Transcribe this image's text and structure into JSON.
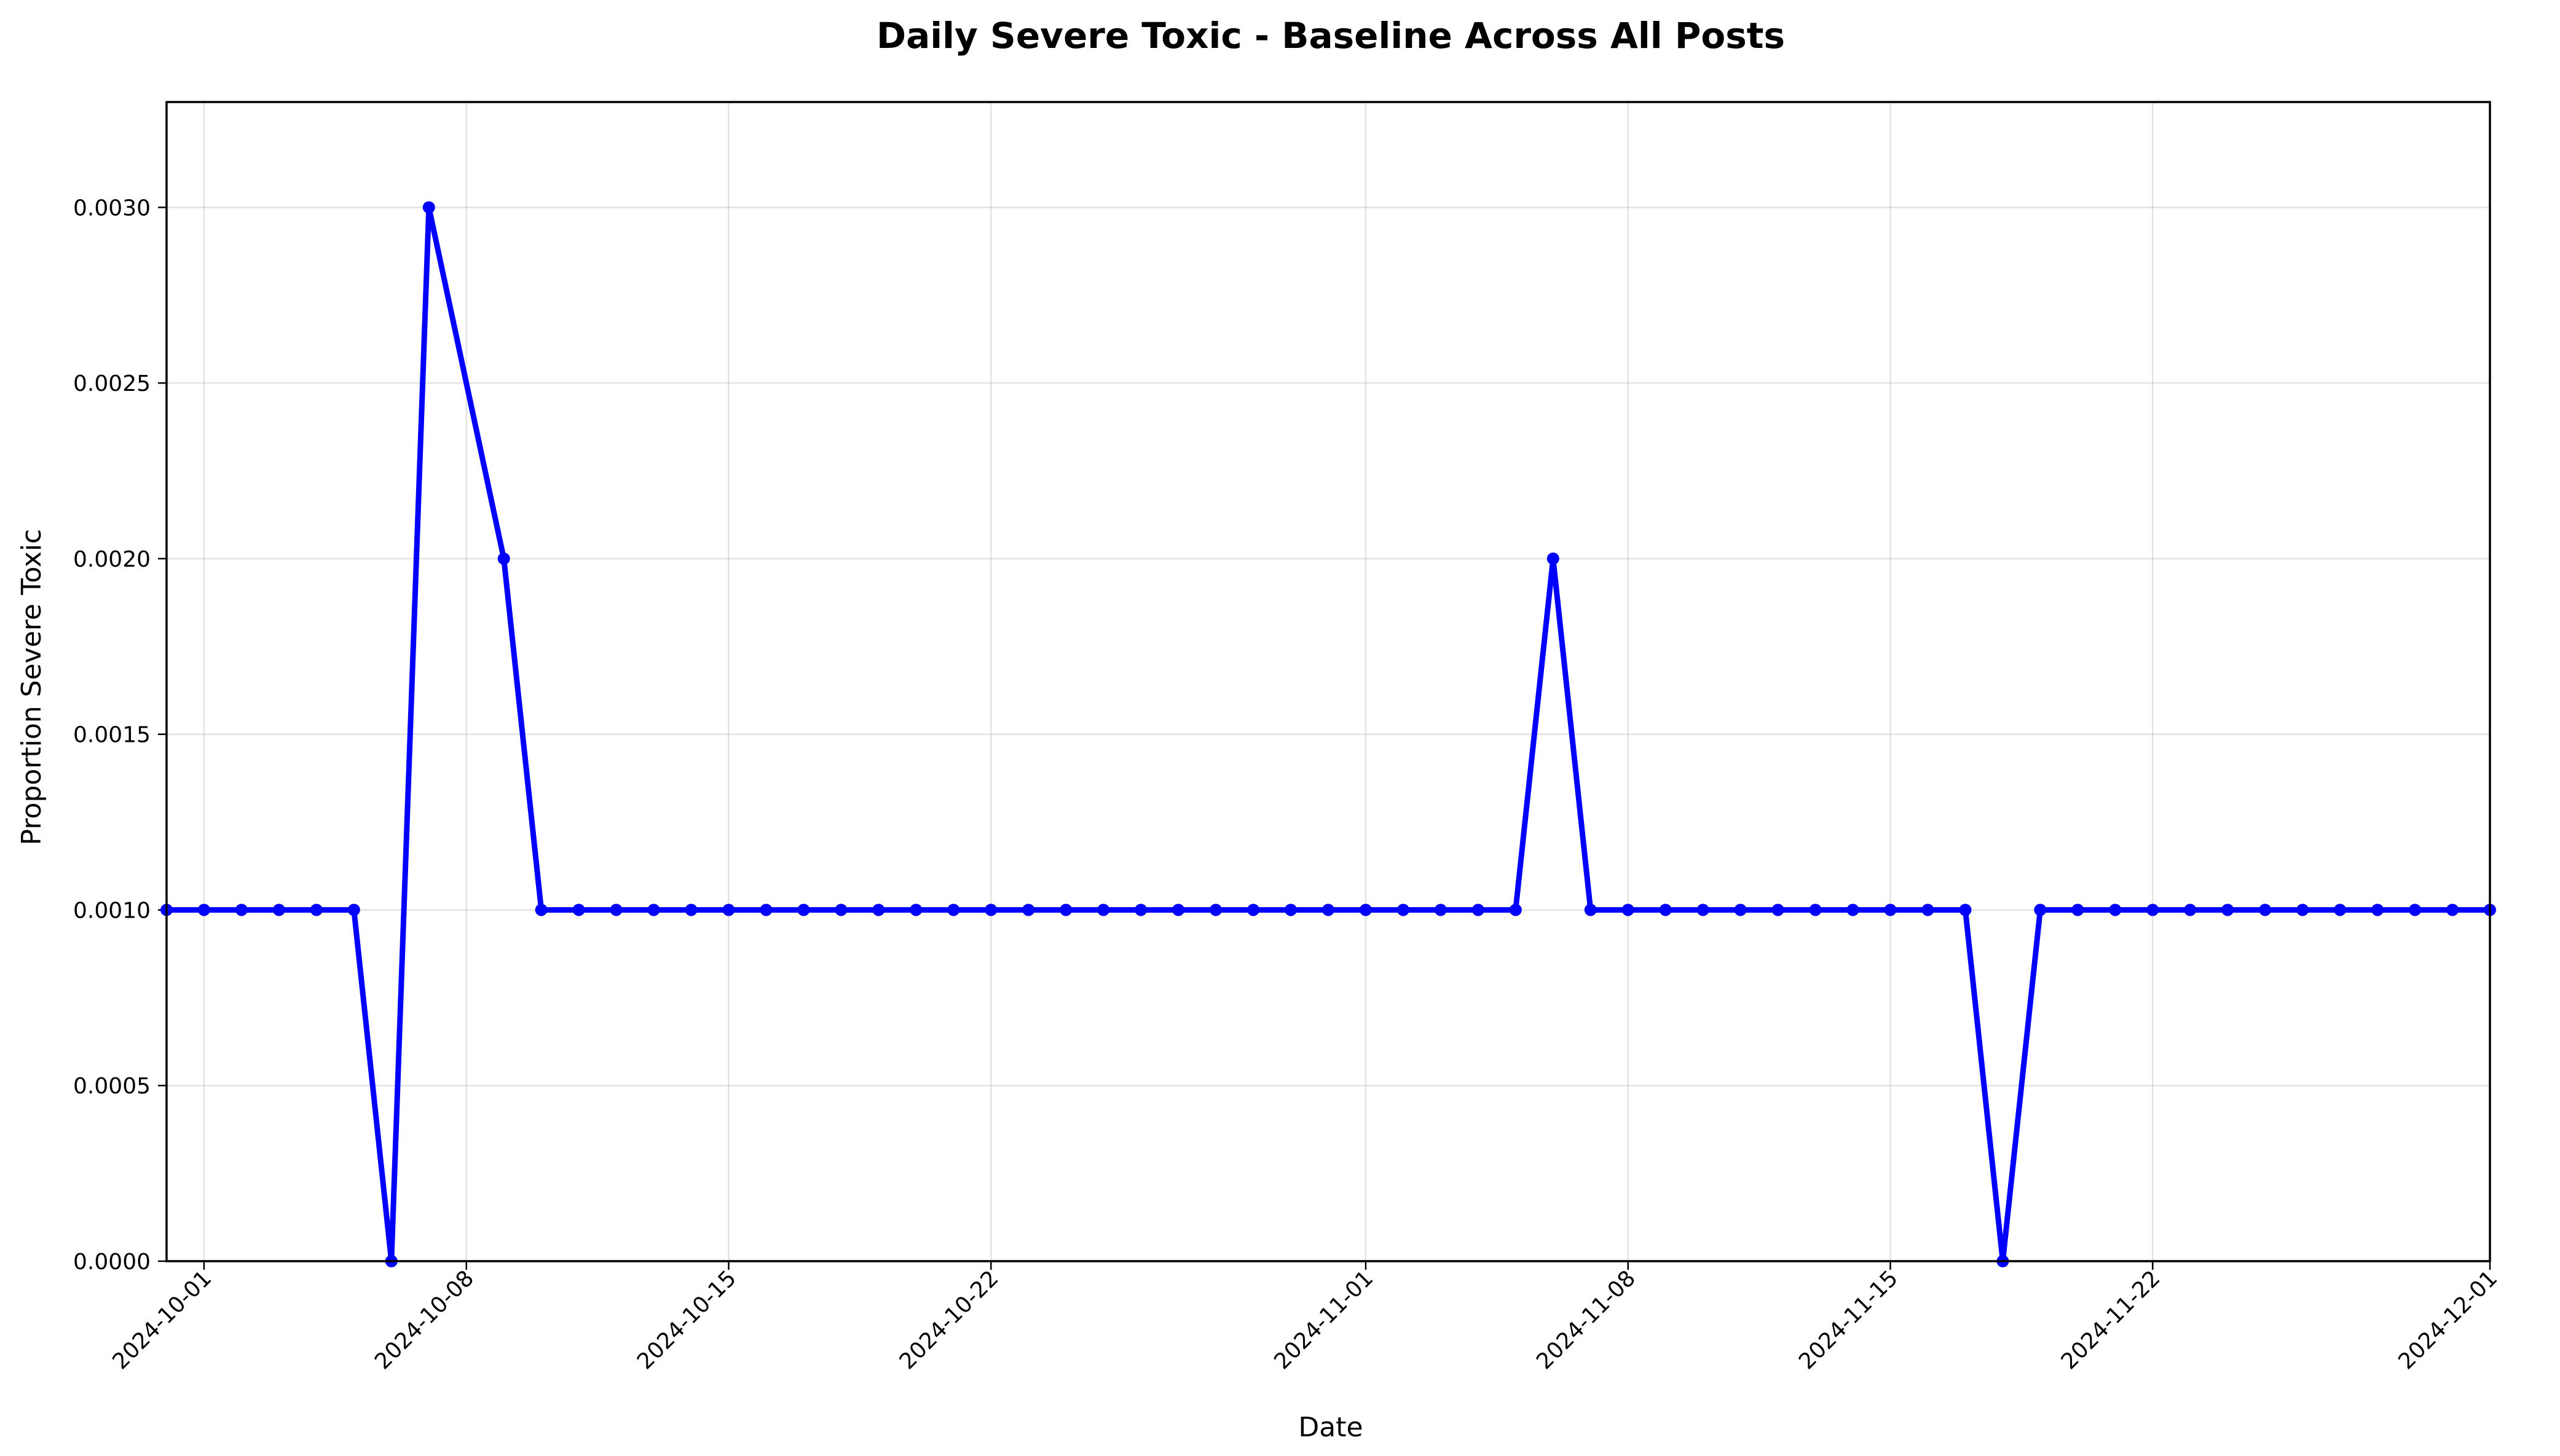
{
  "chart_data": {
    "type": "line",
    "title": "Daily Severe Toxic - Baseline Across All Posts",
    "xlabel": "Date",
    "ylabel": "Proportion Severe Toxic",
    "xlim": [
      "2024-09-30",
      "2024-12-01"
    ],
    "ylim": [
      0,
      0.0033
    ],
    "grid": true,
    "x_ticks": [
      "2024-10-01",
      "2024-10-08",
      "2024-10-15",
      "2024-10-22",
      "2024-11-01",
      "2024-11-08",
      "2024-11-15",
      "2024-11-22",
      "2024-12-01"
    ],
    "y_ticks": [
      "0.0000",
      "0.0005",
      "0.0010",
      "0.0015",
      "0.0020",
      "0.0025",
      "0.0030"
    ],
    "color": "#0000ff",
    "series": [
      {
        "x": [
          "2024-09-30",
          "2024-10-01",
          "2024-10-02",
          "2024-10-03",
          "2024-10-04",
          "2024-10-05",
          "2024-10-06",
          "2024-10-07",
          "2024-10-09",
          "2024-10-10",
          "2024-10-11",
          "2024-10-12",
          "2024-10-13",
          "2024-10-14",
          "2024-10-15",
          "2024-10-16",
          "2024-10-17",
          "2024-10-18",
          "2024-10-19",
          "2024-10-20",
          "2024-10-21",
          "2024-10-22",
          "2024-10-23",
          "2024-10-24",
          "2024-10-25",
          "2024-10-26",
          "2024-10-27",
          "2024-10-28",
          "2024-10-29",
          "2024-10-30",
          "2024-10-31",
          "2024-11-01",
          "2024-11-02",
          "2024-11-03",
          "2024-11-04",
          "2024-11-05",
          "2024-11-06",
          "2024-11-07",
          "2024-11-08",
          "2024-11-09",
          "2024-11-10",
          "2024-11-11",
          "2024-11-12",
          "2024-11-13",
          "2024-11-14",
          "2024-11-15",
          "2024-11-16",
          "2024-11-17",
          "2024-11-18",
          "2024-11-19",
          "2024-11-20",
          "2024-11-21",
          "2024-11-22",
          "2024-11-23",
          "2024-11-24",
          "2024-11-25",
          "2024-11-26",
          "2024-11-27",
          "2024-11-28",
          "2024-11-29",
          "2024-11-30",
          "2024-12-01"
        ],
        "values": [
          0.001,
          0.001,
          0.001,
          0.001,
          0.001,
          0.001,
          0.0,
          0.003,
          0.002,
          0.001,
          0.001,
          0.001,
          0.001,
          0.001,
          0.001,
          0.001,
          0.001,
          0.001,
          0.001,
          0.001,
          0.001,
          0.001,
          0.001,
          0.001,
          0.001,
          0.001,
          0.001,
          0.001,
          0.001,
          0.001,
          0.001,
          0.001,
          0.001,
          0.001,
          0.001,
          0.001,
          0.002,
          0.001,
          0.001,
          0.001,
          0.001,
          0.001,
          0.001,
          0.001,
          0.001,
          0.001,
          0.001,
          0.001,
          0.0,
          0.001,
          0.001,
          0.001,
          0.001,
          0.001,
          0.001,
          0.001,
          0.001,
          0.001,
          0.001,
          0.001,
          0.001,
          0.001
        ]
      }
    ]
  }
}
